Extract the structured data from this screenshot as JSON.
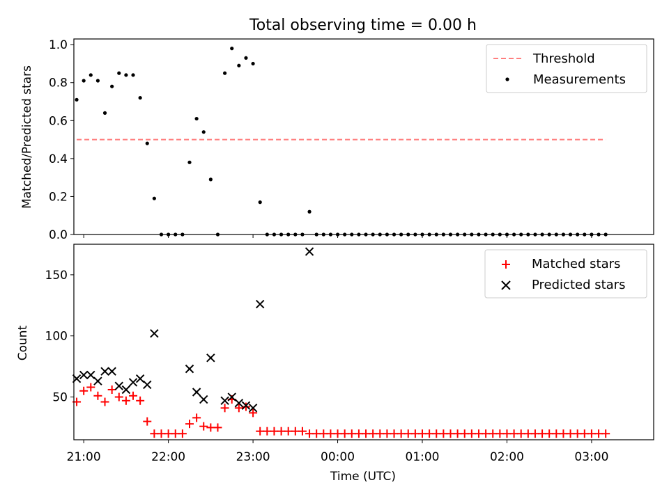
{
  "chart_data": [
    {
      "type": "scatter",
      "title": "Total observing time = 0.00 h",
      "ylabel": "Matched/Predicted stars",
      "xlabel": "",
      "xlim": [
        "20:53",
        "03:44"
      ],
      "ylim": [
        0,
        1.03
      ],
      "yticks": [
        "0.0",
        "0.2",
        "0.4",
        "0.6",
        "0.8",
        "1.0"
      ],
      "legend_position": "top-right",
      "threshold": {
        "name": "Threshold",
        "value": 0.5,
        "x_start": "20:55",
        "x_end": "03:10",
        "color": "#ff7f7f"
      },
      "series": [
        {
          "name": "Measurements",
          "color": "#000000",
          "x": [
            "20:55",
            "21:00",
            "21:05",
            "21:10",
            "21:15",
            "21:20",
            "21:25",
            "21:30",
            "21:35",
            "21:40",
            "21:45",
            "21:50",
            "21:55",
            "22:00",
            "22:05",
            "22:10",
            "22:15",
            "22:20",
            "22:25",
            "22:30",
            "22:35",
            "22:40",
            "22:45",
            "22:50",
            "22:55",
            "23:00",
            "23:05",
            "23:10",
            "23:15",
            "23:20",
            "23:25",
            "23:30",
            "23:35",
            "23:40",
            "23:45",
            "23:50",
            "23:55",
            "00:00",
            "00:05",
            "00:10",
            "00:15",
            "00:20",
            "00:25",
            "00:30",
            "00:35",
            "00:40",
            "00:45",
            "00:50",
            "00:55",
            "01:00",
            "01:05",
            "01:10",
            "01:15",
            "01:20",
            "01:25",
            "01:30",
            "01:35",
            "01:40",
            "01:45",
            "01:50",
            "01:55",
            "02:00",
            "02:05",
            "02:10",
            "02:15",
            "02:20",
            "02:25",
            "02:30",
            "02:35",
            "02:40",
            "02:45",
            "02:50",
            "02:55",
            "03:00",
            "03:05",
            "03:10"
          ],
          "y": [
            0.71,
            0.81,
            0.84,
            0.81,
            0.64,
            0.78,
            0.85,
            0.84,
            0.84,
            0.72,
            0.48,
            0.19,
            0,
            0,
            0,
            0,
            0.38,
            0.61,
            0.54,
            0.29,
            0,
            0.85,
            0.98,
            0.89,
            0.93,
            0.9,
            0.17,
            0,
            0,
            0,
            0,
            0,
            0,
            0.12,
            0,
            0,
            0,
            0,
            0,
            0,
            0,
            0,
            0,
            0,
            0,
            0,
            0,
            0,
            0,
            0,
            0,
            0,
            0,
            0,
            0,
            0,
            0,
            0,
            0,
            0,
            0,
            0,
            0,
            0,
            0,
            0,
            0,
            0,
            0,
            0,
            0,
            0,
            0,
            0,
            0,
            0
          ]
        }
      ]
    },
    {
      "type": "scatter",
      "title": "",
      "ylabel": "Count",
      "xlabel": "Time (UTC)",
      "xlim": [
        "20:53",
        "03:44"
      ],
      "ylim": [
        15,
        175
      ],
      "yticks": [
        "50",
        "100",
        "150"
      ],
      "xticks": [
        "21:00",
        "22:00",
        "23:00",
        "00:00",
        "01:00",
        "02:00",
        "03:00"
      ],
      "legend_position": "top-right",
      "series": [
        {
          "name": "Matched stars",
          "color": "#ff0000",
          "marker": "plus",
          "x": [
            "20:55",
            "21:00",
            "21:05",
            "21:10",
            "21:15",
            "21:20",
            "21:25",
            "21:30",
            "21:35",
            "21:40",
            "21:45",
            "21:50",
            "21:55",
            "22:00",
            "22:05",
            "22:10",
            "22:15",
            "22:20",
            "22:25",
            "22:30",
            "22:35",
            "22:40",
            "22:45",
            "22:50",
            "22:55",
            "23:00",
            "23:05",
            "23:10",
            "23:15",
            "23:20",
            "23:25",
            "23:30",
            "23:35",
            "23:40",
            "23:45",
            "23:50",
            "23:55",
            "00:00",
            "00:05",
            "00:10",
            "00:15",
            "00:20",
            "00:25",
            "00:30",
            "00:35",
            "00:40",
            "00:45",
            "00:50",
            "00:55",
            "01:00",
            "01:05",
            "01:10",
            "01:15",
            "01:20",
            "01:25",
            "01:30",
            "01:35",
            "01:40",
            "01:45",
            "01:50",
            "01:55",
            "02:00",
            "02:05",
            "02:10",
            "02:15",
            "02:20",
            "02:25",
            "02:30",
            "02:35",
            "02:40",
            "02:45",
            "02:50",
            "02:55",
            "03:00",
            "03:05",
            "03:10"
          ],
          "y": [
            46,
            55,
            58,
            51,
            46,
            56,
            50,
            47,
            51,
            47,
            30,
            20,
            20,
            20,
            20,
            20,
            28,
            33,
            26,
            25,
            25,
            41,
            48,
            41,
            42,
            37,
            22,
            22,
            22,
            22,
            22,
            22,
            22,
            20,
            20,
            20,
            20,
            20,
            20,
            20,
            20,
            20,
            20,
            20,
            20,
            20,
            20,
            20,
            20,
            20,
            20,
            20,
            20,
            20,
            20,
            20,
            20,
            20,
            20,
            20,
            20,
            20,
            20,
            20,
            20,
            20,
            20,
            20,
            20,
            20,
            20,
            20,
            20,
            20,
            20,
            20
          ]
        },
        {
          "name": "Predicted stars",
          "color": "#000000",
          "marker": "x",
          "x": [
            "20:55",
            "21:00",
            "21:05",
            "21:10",
            "21:15",
            "21:20",
            "21:25",
            "21:30",
            "21:35",
            "21:40",
            "21:45",
            "21:50",
            "22:15",
            "22:20",
            "22:25",
            "22:30",
            "22:40",
            "22:45",
            "22:50",
            "22:55",
            "23:00",
            "23:05",
            "23:40"
          ],
          "y": [
            65,
            68,
            68,
            63,
            71,
            71,
            59,
            56,
            62,
            65,
            60,
            102,
            73,
            54,
            48,
            82,
            47,
            50,
            45,
            43,
            41,
            126,
            169
          ]
        }
      ]
    }
  ]
}
